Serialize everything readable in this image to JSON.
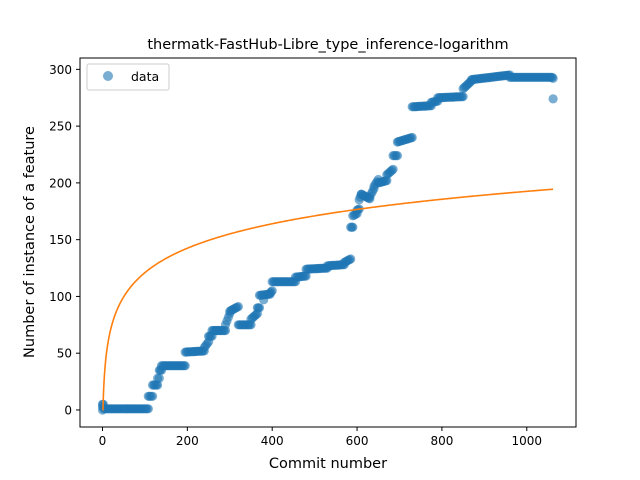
{
  "chart_data": {
    "type": "scatter",
    "title": "thermatk-FastHub-Libre_type_inference-logarithm",
    "xlabel": "Commit number",
    "ylabel": "Number of instance of a feature",
    "xlim": [
      -53,
      1116
    ],
    "ylim": [
      -15,
      310
    ],
    "xticks": [
      0,
      200,
      400,
      600,
      800,
      1000
    ],
    "yticks": [
      0,
      50,
      100,
      150,
      200,
      250,
      300
    ],
    "grid": false,
    "legend": {
      "position": "top-left",
      "entries": [
        "data"
      ]
    },
    "colors": {
      "data": "#1f77b4",
      "fit": "#ff7f0e"
    },
    "series": [
      {
        "name": "data",
        "kind": "scatter",
        "segments": [
          [
            0,
            5,
            2,
            5
          ],
          [
            3,
            1,
            108,
            1
          ],
          [
            108,
            12,
            118,
            12
          ],
          [
            118,
            22,
            130,
            22
          ],
          [
            130,
            28,
            134,
            28
          ],
          [
            134,
            35,
            139,
            35
          ],
          [
            139,
            39,
            195,
            39
          ],
          [
            195,
            51,
            240,
            52
          ],
          [
            240,
            55,
            250,
            60
          ],
          [
            250,
            65,
            258,
            65
          ],
          [
            258,
            70,
            290,
            70
          ],
          [
            290,
            75,
            300,
            85
          ],
          [
            300,
            87,
            320,
            91
          ],
          [
            320,
            75,
            350,
            75
          ],
          [
            350,
            80,
            365,
            85
          ],
          [
            365,
            90,
            370,
            90
          ],
          [
            370,
            101,
            395,
            102
          ],
          [
            395,
            103,
            400,
            105
          ],
          [
            400,
            113,
            455,
            113
          ],
          [
            455,
            117,
            480,
            118
          ],
          [
            480,
            124,
            530,
            125
          ],
          [
            530,
            127,
            570,
            128
          ],
          [
            570,
            130,
            585,
            133
          ],
          [
            585,
            161,
            590,
            161
          ],
          [
            590,
            171,
            600,
            173
          ],
          [
            600,
            176,
            605,
            177
          ],
          [
            605,
            185,
            610,
            190
          ],
          [
            610,
            190,
            630,
            186
          ],
          [
            630,
            188,
            640,
            195
          ],
          [
            640,
            197,
            650,
            203
          ],
          [
            650,
            200,
            670,
            202
          ],
          [
            670,
            207,
            685,
            212
          ],
          [
            685,
            224,
            695,
            224
          ],
          [
            695,
            236,
            730,
            240
          ],
          [
            730,
            267,
            775,
            268
          ],
          [
            775,
            271,
            790,
            272
          ],
          [
            790,
            275,
            850,
            276
          ],
          [
            850,
            283,
            870,
            290
          ],
          [
            870,
            291,
            960,
            295
          ],
          [
            960,
            293,
            1060,
            293
          ]
        ],
        "points": [
          [
            0,
            0
          ],
          [
            0,
            3
          ],
          [
            270,
            70
          ],
          [
            380,
            97
          ],
          [
            1062,
            274
          ],
          [
            1062,
            292
          ]
        ]
      },
      {
        "name": "",
        "kind": "line",
        "model": "a + b*ln(x+1)",
        "a": -23,
        "b": 31.2,
        "x": [
          0,
          1062
        ]
      }
    ]
  }
}
